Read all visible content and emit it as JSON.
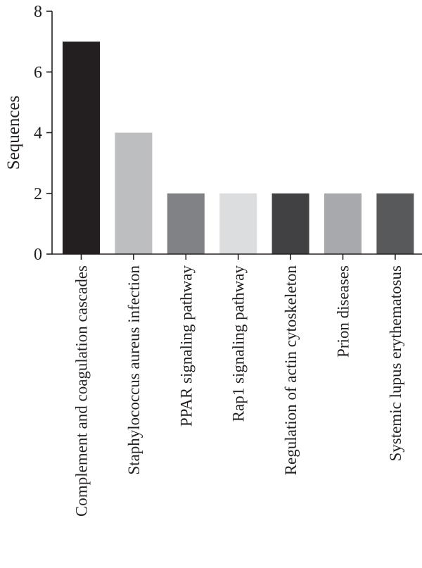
{
  "chart_data": {
    "type": "bar",
    "title": "",
    "xlabel": "",
    "ylabel": "Sequences",
    "ylim": [
      0,
      8
    ],
    "yticks": [
      0,
      2,
      4,
      6,
      8
    ],
    "grid": false,
    "legend": "none",
    "categories": [
      "Complement and coagulation cascades",
      "Staphylococcus aureus infection",
      "PPAR signaling pathway",
      "Rap1 signaling pathway",
      "Regulation of actin cytoskeleton",
      "Prion diseases",
      "Systemic lupus erythematosus"
    ],
    "values": [
      7,
      4,
      2,
      2,
      2,
      2,
      2
    ],
    "colors": [
      "#231f20",
      "#bcbec0",
      "#808285",
      "#dcddde",
      "#414042",
      "#a7a9ac",
      "#58595b"
    ]
  }
}
